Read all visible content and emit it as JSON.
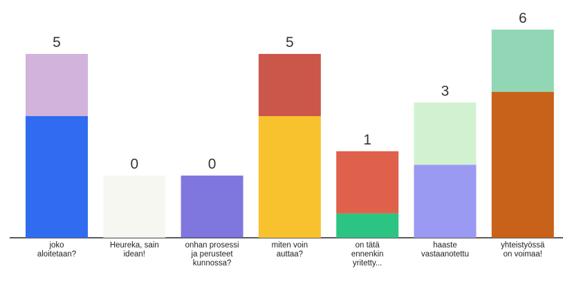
{
  "chart_data": {
    "type": "bar",
    "categories": [
      "joko aloitetaan?",
      "Heureka, sain idean!",
      "onhan prosessi ja perusteet kunnossa?",
      "miten voin auttaa?",
      "on tätä ennenkin yritetty...",
      "haaste vastaanotettu",
      "yhteistyössä on voimaa!"
    ],
    "values": [
      5,
      0,
      0,
      5,
      1,
      3,
      6
    ],
    "colors": [
      "#2f6cf0",
      "#f2f2ee",
      "#7366e0",
      "#f8c22e",
      "#2cc482",
      "#9a9af2",
      "#c8621a"
    ]
  }
}
